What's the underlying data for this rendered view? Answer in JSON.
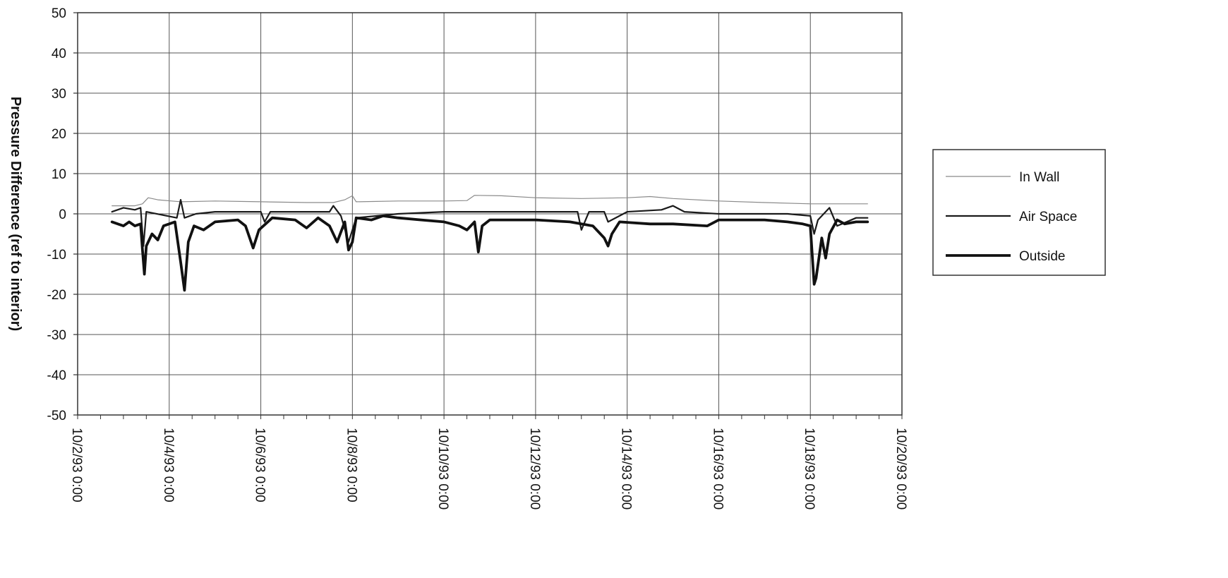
{
  "chart_data": {
    "type": "line",
    "title": "",
    "xlabel": "",
    "ylabel": "Pressure Difference (ref to interior)",
    "ylim": [
      -50,
      50
    ],
    "xlim": [
      "1993-10-02",
      "1993-10-20"
    ],
    "yticks": [
      50,
      40,
      30,
      20,
      10,
      0,
      -10,
      -20,
      -30,
      -40,
      -50
    ],
    "xtick_labels": [
      "10/2/93 0:00",
      "10/4/93 0:00",
      "10/6/93 0:00",
      "10/8/93 0:00",
      "10/10/93 0:00",
      "10/12/93 0:00",
      "10/14/93 0:00",
      "10/16/93 0:00",
      "10/18/93 0:00",
      "10/20/93 0:00"
    ],
    "grid": true,
    "legend_position": "right",
    "series": [
      {
        "name": "In Wall",
        "color": "#8a8a8a",
        "weight": "thin",
        "points": [
          [
            "1993-10-02 18:00",
            2.0
          ],
          [
            "1993-10-03 06:00",
            2.0
          ],
          [
            "1993-10-03 10:00",
            2.5
          ],
          [
            "1993-10-03 13:00",
            4.0
          ],
          [
            "1993-10-03 18:00",
            3.5
          ],
          [
            "1993-10-04 06:00",
            3.0
          ],
          [
            "1993-10-05 00:00",
            3.2
          ],
          [
            "1993-10-06 00:00",
            3.0
          ],
          [
            "1993-10-07 00:00",
            2.8
          ],
          [
            "1993-10-07 14:00",
            2.8
          ],
          [
            "1993-10-07 20:00",
            3.5
          ],
          [
            "1993-10-08 00:00",
            4.5
          ],
          [
            "1993-10-08 02:00",
            3.0
          ],
          [
            "1993-10-09 00:00",
            3.2
          ],
          [
            "1993-10-10 00:00",
            3.2
          ],
          [
            "1993-10-10 12:00",
            3.3
          ],
          [
            "1993-10-10 16:00",
            4.6
          ],
          [
            "1993-10-11 06:00",
            4.5
          ],
          [
            "1993-10-12 00:00",
            4.0
          ],
          [
            "1993-10-13 00:00",
            3.8
          ],
          [
            "1993-10-14 00:00",
            4.0
          ],
          [
            "1993-10-14 12:00",
            4.3
          ],
          [
            "1993-10-15 00:00",
            3.8
          ],
          [
            "1993-10-16 00:00",
            3.2
          ],
          [
            "1993-10-17 00:00",
            2.8
          ],
          [
            "1993-10-18 00:00",
            2.5
          ],
          [
            "1993-10-19 00:00",
            2.5
          ],
          [
            "1993-10-19 06:00",
            2.5
          ]
        ]
      },
      {
        "name": "Air Space",
        "color": "#1a1a1a",
        "weight": "medium",
        "points": [
          [
            "1993-10-02 18:00",
            0.5
          ],
          [
            "1993-10-03 00:00",
            1.5
          ],
          [
            "1993-10-03 06:00",
            1.0
          ],
          [
            "1993-10-03 09:00",
            1.5
          ],
          [
            "1993-10-03 10:30",
            -8.0
          ],
          [
            "1993-10-03 12:00",
            0.5
          ],
          [
            "1993-10-04 04:00",
            -1.0
          ],
          [
            "1993-10-04 06:00",
            3.5
          ],
          [
            "1993-10-04 08:00",
            -1.0
          ],
          [
            "1993-10-04 14:00",
            0.0
          ],
          [
            "1993-10-05 00:00",
            0.5
          ],
          [
            "1993-10-06 00:00",
            0.5
          ],
          [
            "1993-10-06 02:00",
            -2.0
          ],
          [
            "1993-10-06 05:00",
            0.5
          ],
          [
            "1993-10-07 00:00",
            0.5
          ],
          [
            "1993-10-07 12:00",
            0.5
          ],
          [
            "1993-10-07 14:00",
            2.0
          ],
          [
            "1993-10-07 18:00",
            -0.5
          ],
          [
            "1993-10-07 22:00",
            -7.0
          ],
          [
            "1993-10-08 02:00",
            -1.0
          ],
          [
            "1993-10-09 00:00",
            0.0
          ],
          [
            "1993-10-10 00:00",
            0.5
          ],
          [
            "1993-10-11 00:00",
            0.5
          ],
          [
            "1993-10-12 00:00",
            0.5
          ],
          [
            "1993-10-12 22:00",
            0.5
          ],
          [
            "1993-10-13 00:00",
            -4.0
          ],
          [
            "1993-10-13 04:00",
            0.5
          ],
          [
            "1993-10-13 12:00",
            0.5
          ],
          [
            "1993-10-13 14:00",
            -2.0
          ],
          [
            "1993-10-14 00:00",
            0.5
          ],
          [
            "1993-10-14 18:00",
            1.0
          ],
          [
            "1993-10-15 00:00",
            2.0
          ],
          [
            "1993-10-15 06:00",
            0.5
          ],
          [
            "1993-10-16 00:00",
            0.0
          ],
          [
            "1993-10-17 00:00",
            0.0
          ],
          [
            "1993-10-17 12:00",
            0.0
          ],
          [
            "1993-10-18 00:00",
            -0.5
          ],
          [
            "1993-10-18 02:00",
            -5.0
          ],
          [
            "1993-10-18 04:00",
            -1.5
          ],
          [
            "1993-10-18 10:00",
            1.5
          ],
          [
            "1993-10-18 14:00",
            -3.0
          ],
          [
            "1993-10-19 00:00",
            -1.0
          ],
          [
            "1993-10-19 06:00",
            -1.0
          ]
        ]
      },
      {
        "name": "Outside",
        "color": "#111111",
        "weight": "thick",
        "points": [
          [
            "1993-10-02 18:00",
            -2.0
          ],
          [
            "1993-10-03 00:00",
            -3.0
          ],
          [
            "1993-10-03 03:00",
            -2.0
          ],
          [
            "1993-10-03 06:00",
            -3.0
          ],
          [
            "1993-10-03 09:00",
            -2.5
          ],
          [
            "1993-10-03 10:00",
            -9.0
          ],
          [
            "1993-10-03 11:00",
            -15.0
          ],
          [
            "1993-10-03 12:00",
            -8.0
          ],
          [
            "1993-10-03 15:00",
            -5.0
          ],
          [
            "1993-10-03 18:00",
            -6.5
          ],
          [
            "1993-10-03 21:00",
            -3.0
          ],
          [
            "1993-10-04 03:00",
            -2.0
          ],
          [
            "1993-10-04 06:00",
            -12.0
          ],
          [
            "1993-10-04 08:00",
            -19.0
          ],
          [
            "1993-10-04 10:00",
            -7.0
          ],
          [
            "1993-10-04 13:00",
            -3.0
          ],
          [
            "1993-10-04 18:00",
            -4.0
          ],
          [
            "1993-10-05 00:00",
            -2.0
          ],
          [
            "1993-10-05 12:00",
            -1.5
          ],
          [
            "1993-10-05 16:00",
            -3.0
          ],
          [
            "1993-10-05 20:00",
            -8.5
          ],
          [
            "1993-10-05 23:00",
            -4.0
          ],
          [
            "1993-10-06 06:00",
            -1.0
          ],
          [
            "1993-10-06 18:00",
            -1.5
          ],
          [
            "1993-10-07 00:00",
            -3.5
          ],
          [
            "1993-10-07 06:00",
            -1.0
          ],
          [
            "1993-10-07 12:00",
            -3.0
          ],
          [
            "1993-10-07 16:00",
            -7.0
          ],
          [
            "1993-10-07 20:00",
            -2.0
          ],
          [
            "1993-10-07 22:00",
            -9.0
          ],
          [
            "1993-10-08 00:00",
            -7.0
          ],
          [
            "1993-10-08 02:00",
            -1.0
          ],
          [
            "1993-10-08 10:00",
            -1.5
          ],
          [
            "1993-10-08 16:00",
            -0.5
          ],
          [
            "1993-10-09 00:00",
            -1.0
          ],
          [
            "1993-10-09 12:00",
            -1.5
          ],
          [
            "1993-10-10 00:00",
            -2.0
          ],
          [
            "1993-10-10 08:00",
            -3.0
          ],
          [
            "1993-10-10 12:00",
            -4.0
          ],
          [
            "1993-10-10 16:00",
            -2.0
          ],
          [
            "1993-10-10 18:00",
            -9.5
          ],
          [
            "1993-10-10 20:00",
            -3.0
          ],
          [
            "1993-10-11 00:00",
            -1.5
          ],
          [
            "1993-10-12 00:00",
            -1.5
          ],
          [
            "1993-10-12 18:00",
            -2.0
          ],
          [
            "1993-10-13 00:00",
            -2.5
          ],
          [
            "1993-10-13 06:00",
            -3.0
          ],
          [
            "1993-10-13 12:00",
            -6.0
          ],
          [
            "1993-10-13 14:00",
            -8.0
          ],
          [
            "1993-10-13 16:00",
            -5.0
          ],
          [
            "1993-10-13 20:00",
            -2.0
          ],
          [
            "1993-10-14 12:00",
            -2.5
          ],
          [
            "1993-10-15 00:00",
            -2.5
          ],
          [
            "1993-10-15 18:00",
            -3.0
          ],
          [
            "1993-10-16 00:00",
            -1.5
          ],
          [
            "1993-10-17 00:00",
            -1.5
          ],
          [
            "1993-10-17 12:00",
            -2.0
          ],
          [
            "1993-10-17 20:00",
            -2.5
          ],
          [
            "1993-10-18 00:00",
            -3.0
          ],
          [
            "1993-10-18 02:00",
            -17.5
          ],
          [
            "1993-10-18 03:00",
            -16.0
          ],
          [
            "1993-10-18 06:00",
            -6.0
          ],
          [
            "1993-10-18 08:00",
            -11.0
          ],
          [
            "1993-10-18 10:00",
            -5.0
          ],
          [
            "1993-10-18 14:00",
            -1.5
          ],
          [
            "1993-10-18 18:00",
            -2.5
          ],
          [
            "1993-10-19 00:00",
            -2.0
          ],
          [
            "1993-10-19 06:00",
            -2.0
          ]
        ]
      }
    ]
  }
}
